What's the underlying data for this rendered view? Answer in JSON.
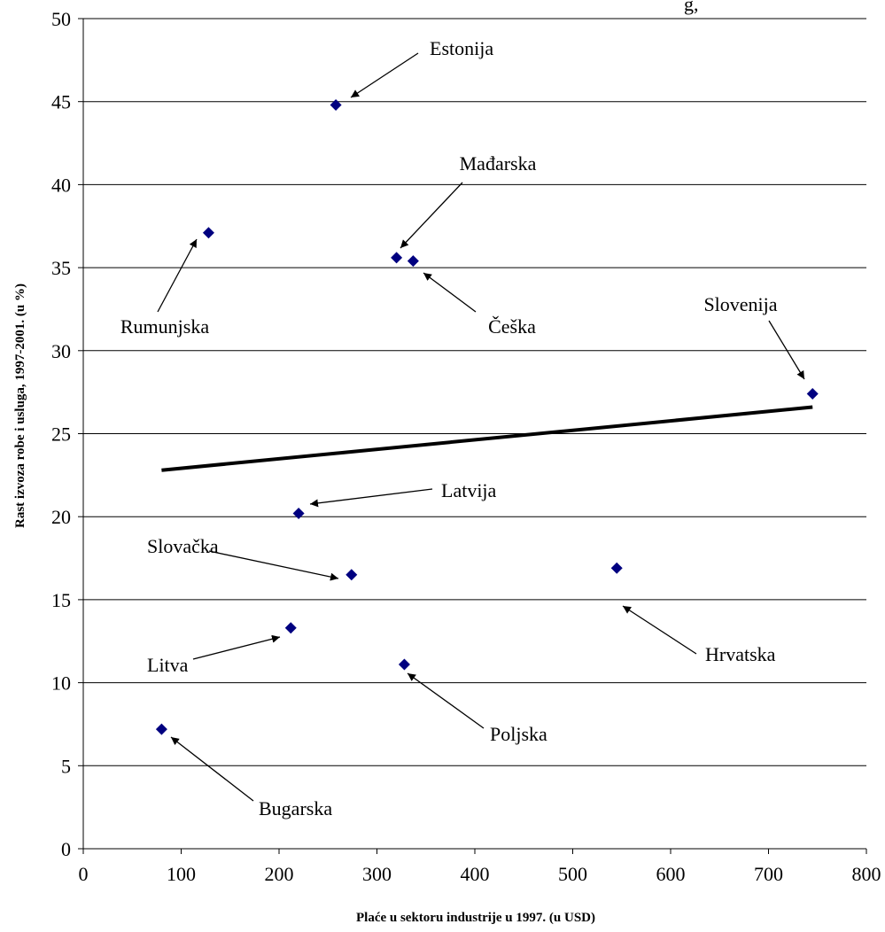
{
  "chart_data": {
    "type": "scatter",
    "title_fragment": "g,",
    "xlabel": "Plaće u sektoru industrije u 1997. (u USD)",
    "ylabel": "Rast izvoza robe i usluga, 1997-2001. (u %)",
    "xlim": [
      0,
      800
    ],
    "ylim": [
      0,
      50
    ],
    "x_ticks": [
      "0",
      "100",
      "200",
      "300",
      "400",
      "500",
      "600",
      "700",
      "800"
    ],
    "y_ticks": [
      "0",
      "5",
      "10",
      "15",
      "20",
      "25",
      "30",
      "35",
      "40",
      "45",
      "50"
    ],
    "grid": "horizontal",
    "marker_color": "#000080",
    "points": [
      {
        "label": "Estonija",
        "x": 258,
        "y": 44.8
      },
      {
        "label": "Rumunjska",
        "x": 128,
        "y": 37.1
      },
      {
        "label": "Mađarska",
        "x": 320,
        "y": 35.6
      },
      {
        "label": "Češka",
        "x": 337,
        "y": 35.4
      },
      {
        "label": "Slovenija",
        "x": 745,
        "y": 27.4
      },
      {
        "label": "Latvija",
        "x": 220,
        "y": 20.2
      },
      {
        "label": "Slovačka",
        "x": 274,
        "y": 16.5
      },
      {
        "label": "Hrvatska",
        "x": 545,
        "y": 16.9
      },
      {
        "label": "Litva",
        "x": 212,
        "y": 13.3
      },
      {
        "label": "Poljska",
        "x": 328,
        "y": 11.1
      },
      {
        "label": "Bugarska",
        "x": 80,
        "y": 7.2
      }
    ],
    "trendline": {
      "x": [
        80,
        745
      ],
      "y": [
        22.8,
        26.6
      ]
    }
  }
}
